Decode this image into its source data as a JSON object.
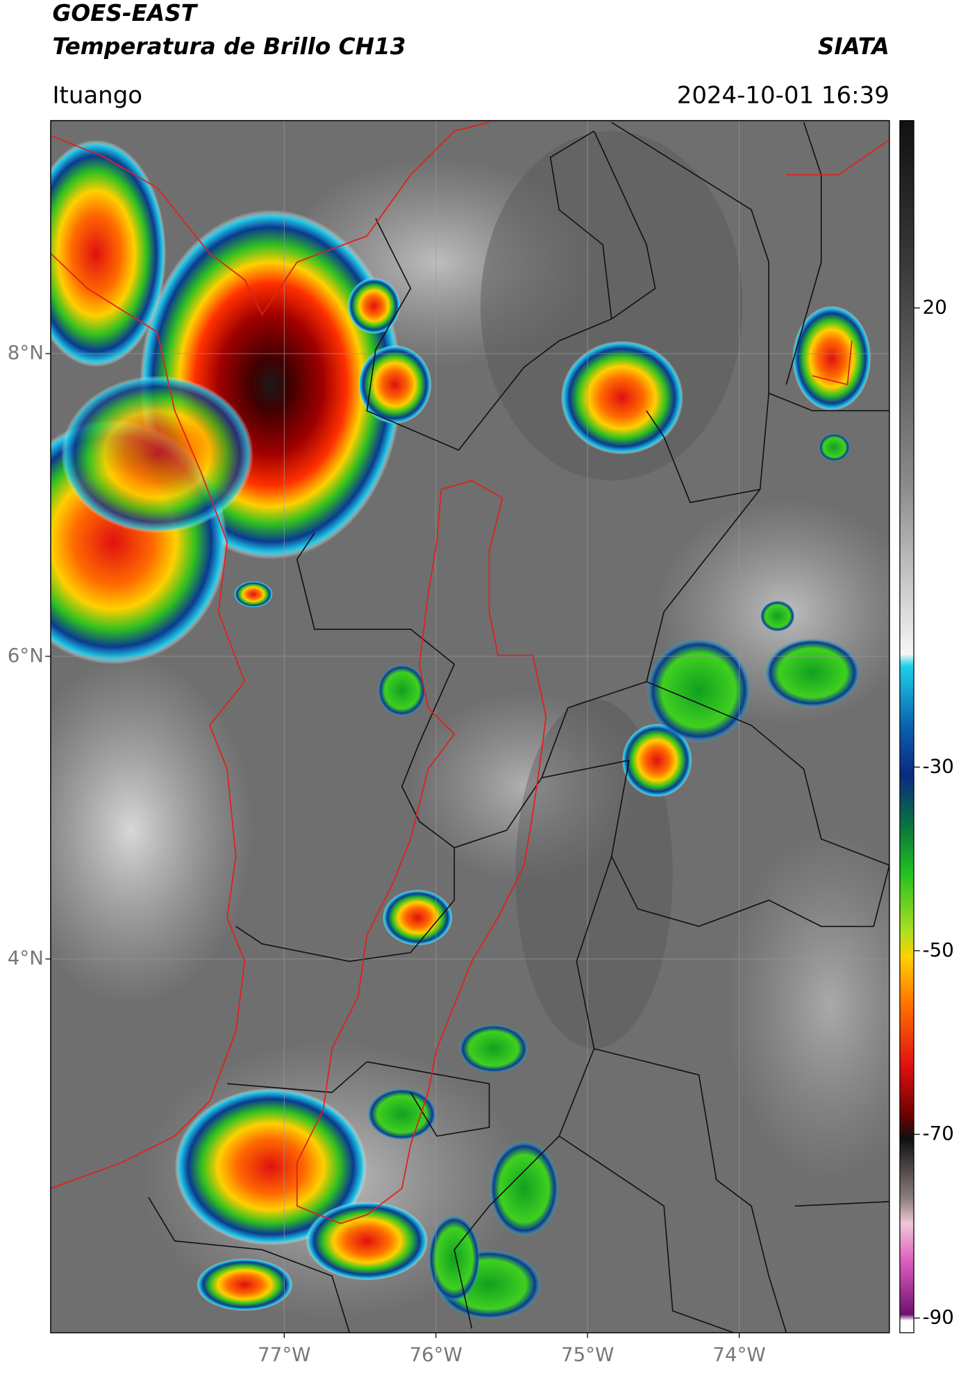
{
  "chart_data": {
    "type": "map",
    "title": "GOES-EAST",
    "subtitle": "Temperatura de Brillo CH13",
    "source": "SIATA",
    "location": "Ituango",
    "datetime": "2024-10-01 16:39",
    "xlim": [
      -78.54,
      -73.01
    ],
    "ylim": [
      1.53,
      9.54
    ],
    "xticks": [
      {
        "value": -77,
        "label": "77°W"
      },
      {
        "value": -76,
        "label": "76°W"
      },
      {
        "value": -75,
        "label": "75°W"
      },
      {
        "value": -74,
        "label": "74°W"
      }
    ],
    "yticks": [
      {
        "value": 8,
        "label": "8°N"
      },
      {
        "value": 6,
        "label": "6°N"
      },
      {
        "value": 4,
        "label": "4°N"
      }
    ],
    "grid": true,
    "colorbar": {
      "lim": [
        -91.6,
        40.4
      ],
      "ticks": [
        20,
        -30,
        -50,
        -70,
        -90
      ]
    }
  }
}
